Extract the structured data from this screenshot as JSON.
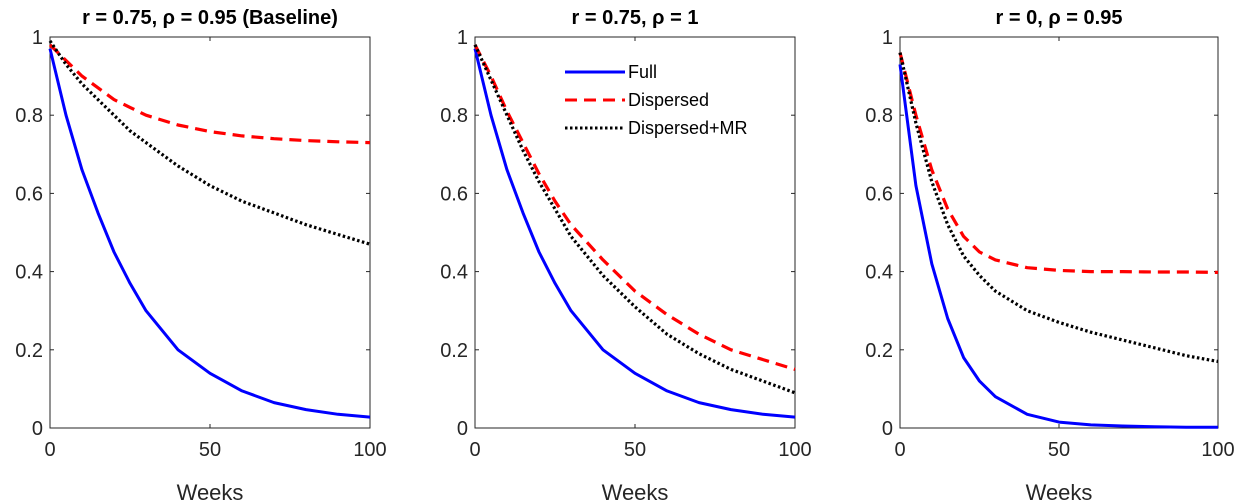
{
  "chart_data": [
    {
      "type": "line",
      "title": "r = 0.75, ρ = 0.95 (Baseline)",
      "xlabel": "Weeks",
      "ylabel": "",
      "xlim": [
        0,
        100
      ],
      "ylim": [
        0,
        1
      ],
      "xticks": [
        "0",
        "50",
        "100"
      ],
      "yticks": [
        "0",
        "0.2",
        "0.4",
        "0.6",
        "0.8",
        "1"
      ],
      "grid": false,
      "legend": null,
      "series": [
        {
          "name": "Full",
          "color": "#0000ff",
          "style": "solid",
          "x": [
            0,
            5,
            10,
            15,
            20,
            25,
            30,
            40,
            50,
            60,
            70,
            80,
            90,
            100
          ],
          "y": [
            0.97,
            0.8,
            0.66,
            0.55,
            0.45,
            0.37,
            0.3,
            0.2,
            0.14,
            0.095,
            0.065,
            0.047,
            0.035,
            0.028
          ]
        },
        {
          "name": "Dispersed",
          "color": "#ff0000",
          "style": "dashed",
          "x": [
            0,
            5,
            10,
            15,
            20,
            25,
            30,
            40,
            50,
            60,
            70,
            80,
            90,
            100
          ],
          "y": [
            0.98,
            0.94,
            0.9,
            0.87,
            0.84,
            0.82,
            0.8,
            0.775,
            0.758,
            0.747,
            0.74,
            0.735,
            0.732,
            0.73
          ]
        },
        {
          "name": "Dispersed+MR",
          "color": "#000000",
          "style": "dotted",
          "x": [
            0,
            5,
            10,
            15,
            20,
            25,
            30,
            40,
            50,
            60,
            70,
            80,
            90,
            100
          ],
          "y": [
            0.99,
            0.93,
            0.88,
            0.84,
            0.8,
            0.76,
            0.73,
            0.67,
            0.62,
            0.58,
            0.55,
            0.52,
            0.495,
            0.47
          ]
        }
      ]
    },
    {
      "type": "line",
      "title": "r = 0.75, ρ = 1",
      "xlabel": "Weeks",
      "ylabel": "",
      "xlim": [
        0,
        100
      ],
      "ylim": [
        0,
        1
      ],
      "xticks": [
        "0",
        "50",
        "100"
      ],
      "yticks": [
        "0",
        "0.2",
        "0.4",
        "0.6",
        "0.8",
        "1"
      ],
      "grid": false,
      "legend": "top-right",
      "series": [
        {
          "name": "Full",
          "color": "#0000ff",
          "style": "solid",
          "x": [
            0,
            5,
            10,
            15,
            20,
            25,
            30,
            40,
            50,
            60,
            70,
            80,
            90,
            100
          ],
          "y": [
            0.97,
            0.8,
            0.66,
            0.55,
            0.45,
            0.37,
            0.3,
            0.2,
            0.14,
            0.095,
            0.065,
            0.047,
            0.035,
            0.028
          ]
        },
        {
          "name": "Dispersed",
          "color": "#ff0000",
          "style": "dashed",
          "x": [
            0,
            5,
            10,
            15,
            20,
            25,
            30,
            40,
            50,
            60,
            70,
            80,
            90,
            100
          ],
          "y": [
            0.98,
            0.9,
            0.81,
            0.73,
            0.65,
            0.58,
            0.52,
            0.43,
            0.35,
            0.29,
            0.24,
            0.2,
            0.175,
            0.15
          ]
        },
        {
          "name": "Dispersed+MR",
          "color": "#000000",
          "style": "dotted",
          "x": [
            0,
            5,
            10,
            15,
            20,
            25,
            30,
            40,
            50,
            60,
            70,
            80,
            90,
            100
          ],
          "y": [
            0.98,
            0.89,
            0.8,
            0.71,
            0.63,
            0.56,
            0.49,
            0.39,
            0.31,
            0.24,
            0.19,
            0.15,
            0.12,
            0.09
          ]
        }
      ]
    },
    {
      "type": "line",
      "title": "r = 0, ρ = 0.95",
      "xlabel": "Weeks",
      "ylabel": "",
      "xlim": [
        0,
        100
      ],
      "ylim": [
        0,
        1
      ],
      "xticks": [
        "0",
        "50",
        "100"
      ],
      "yticks": [
        "0",
        "0.2",
        "0.4",
        "0.6",
        "0.8",
        "1"
      ],
      "grid": false,
      "legend": null,
      "series": [
        {
          "name": "Full",
          "color": "#0000ff",
          "style": "solid",
          "x": [
            0,
            5,
            10,
            15,
            20,
            25,
            30,
            40,
            50,
            60,
            70,
            80,
            90,
            100
          ],
          "y": [
            0.93,
            0.62,
            0.42,
            0.28,
            0.18,
            0.12,
            0.08,
            0.035,
            0.015,
            0.008,
            0.005,
            0.003,
            0.002,
            0.002
          ]
        },
        {
          "name": "Dispersed",
          "color": "#ff0000",
          "style": "dashed",
          "x": [
            0,
            5,
            10,
            15,
            20,
            25,
            30,
            40,
            50,
            60,
            70,
            80,
            90,
            100
          ],
          "y": [
            0.96,
            0.8,
            0.66,
            0.56,
            0.49,
            0.45,
            0.43,
            0.41,
            0.403,
            0.4,
            0.4,
            0.399,
            0.399,
            0.398
          ]
        },
        {
          "name": "Dispersed+MR",
          "color": "#000000",
          "style": "dotted",
          "x": [
            0,
            5,
            10,
            15,
            20,
            25,
            30,
            40,
            50,
            60,
            70,
            80,
            90,
            100
          ],
          "y": [
            0.96,
            0.78,
            0.63,
            0.52,
            0.44,
            0.39,
            0.35,
            0.3,
            0.27,
            0.245,
            0.225,
            0.205,
            0.185,
            0.17
          ]
        }
      ]
    }
  ]
}
